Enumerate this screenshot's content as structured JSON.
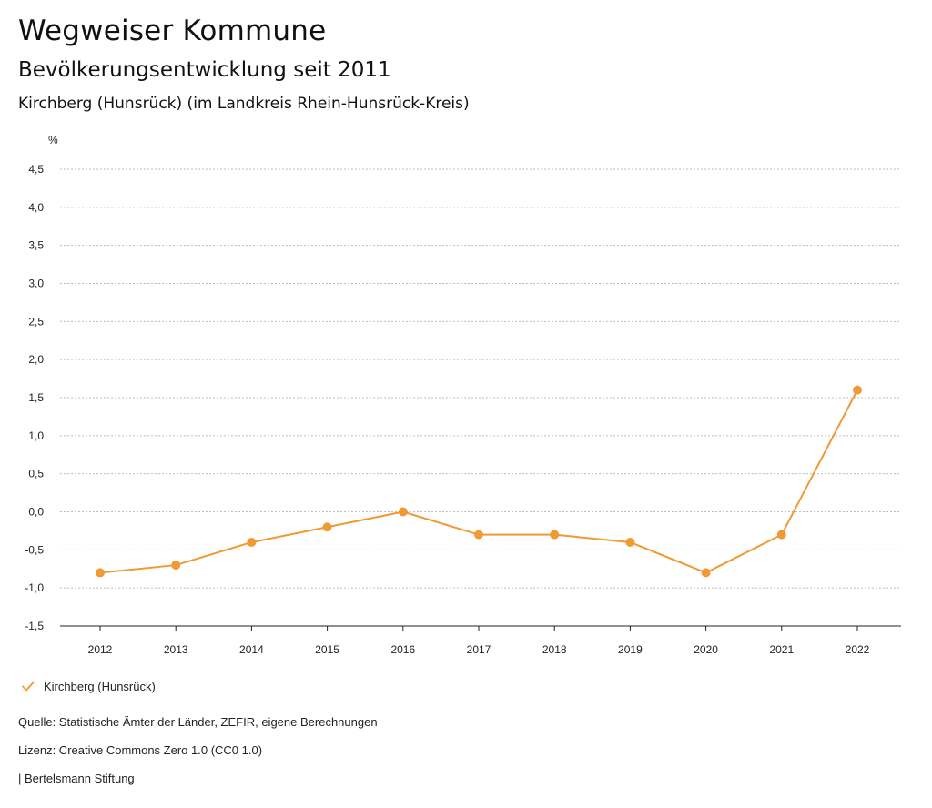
{
  "header": {
    "title": "Wegweiser Kommune",
    "subtitle": "Bevölkerungsentwicklung seit 2011",
    "region": "Kirchberg (Hunsrück) (im Landkreis Rhein-Hunsrück-Kreis)"
  },
  "colors": {
    "series": "#ef9a34",
    "grid": "#bdbdbd",
    "axis": "#222222"
  },
  "chart_data": {
    "type": "line",
    "title": "Bevölkerungsentwicklung seit 2011",
    "xlabel": "",
    "ylabel": "%",
    "categories": [
      "2012",
      "2013",
      "2014",
      "2015",
      "2016",
      "2017",
      "2018",
      "2019",
      "2020",
      "2021",
      "2022"
    ],
    "series": [
      {
        "name": "Kirchberg (Hunsrück)",
        "values": [
          -0.8,
          -0.7,
          -0.4,
          -0.2,
          0.0,
          -0.3,
          -0.3,
          -0.4,
          -0.8,
          -0.3,
          1.6
        ]
      }
    ],
    "ylim": [
      -1.5,
      4.5
    ],
    "yticks": [
      4.5,
      4.0,
      3.5,
      3.0,
      2.5,
      2.0,
      1.5,
      1.0,
      0.5,
      0.0,
      -0.5,
      -1.0,
      -1.5
    ],
    "ytick_labels": [
      "4,5",
      "4,0",
      "3,5",
      "3,0",
      "2,5",
      "2,0",
      "1,5",
      "1,0",
      "0,5",
      "0,0",
      "-0,5",
      "-1,0",
      "-1,5"
    ],
    "grid": true,
    "legend": "bottom-left"
  },
  "legend": {
    "label": "Kirchberg (Hunsrück)",
    "icon": "check-icon"
  },
  "footer": {
    "source": "Quelle: Statistische Ämter der Länder, ZEFIR, eigene Berechnungen",
    "license": "Lizenz: Creative Commons Zero 1.0 (CC0 1.0)",
    "publisher": "| Bertelsmann Stiftung"
  }
}
